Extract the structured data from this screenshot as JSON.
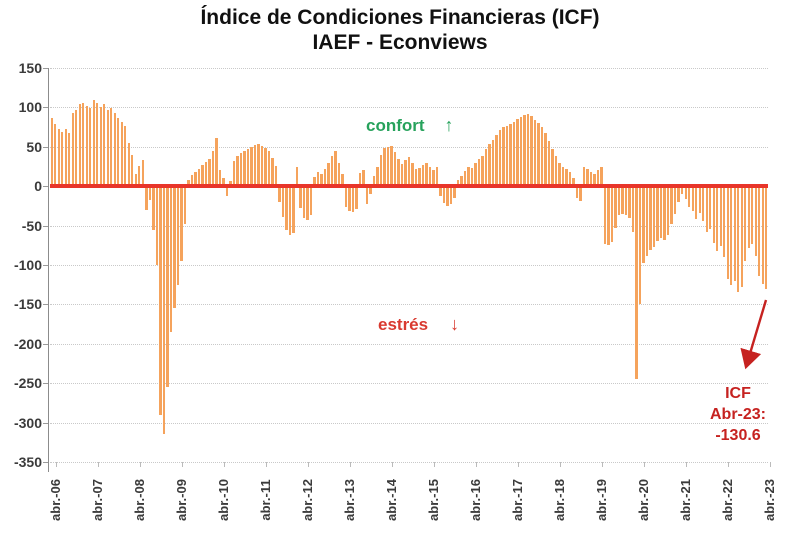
{
  "title": {
    "line1": "Índice de Condiciones Financieras (ICF)",
    "line2": "IAEF - Econviews"
  },
  "annotations": {
    "confort": {
      "label": "confort",
      "arrow": "↑",
      "color": "#27a25c"
    },
    "estres": {
      "label": "estrés",
      "arrow": "↓",
      "color": "#d93a30"
    },
    "callout": {
      "line1": "ICF",
      "line2": "Abr-23:",
      "line3": "-130.6",
      "color": "#c62220"
    }
  },
  "chart_data": {
    "type": "bar",
    "title": "Índice de Condiciones Financieras (ICF)",
    "subtitle": "IAEF - Econviews",
    "frequency": "monthly",
    "x_start": "abr.-06",
    "x_end": "abr.-23",
    "x_tick_labels": [
      "abr.-06",
      "abr.-07",
      "abr.-08",
      "abr.-09",
      "abr.-10",
      "abr.-11",
      "abr.-12",
      "abr.-13",
      "abr.-14",
      "abr.-15",
      "abr.-16",
      "abr.-17",
      "abr.-18",
      "abr.-19",
      "abr.-20",
      "abr.-21",
      "abr.-22",
      "abr.-23"
    ],
    "y_ticks": [
      150,
      100,
      50,
      0,
      -50,
      -100,
      -150,
      -200,
      -250,
      -300,
      -350
    ],
    "ylim": [
      -350,
      150
    ],
    "grid": true,
    "legend": false,
    "bar_color": "#f5a35c",
    "zero_line_color": "#e8352a",
    "axis_color": "#8c8c8c",
    "last_point_label": "-130.6",
    "values": [
      86,
      79,
      73,
      69,
      73,
      67,
      93,
      97,
      104,
      106,
      102,
      99,
      109,
      106,
      101,
      104,
      97,
      99,
      93,
      86,
      82,
      77,
      55,
      40,
      16,
      26,
      33,
      -30,
      -18,
      -55,
      -100,
      -290,
      -315,
      -255,
      -185,
      -155,
      -125,
      -95,
      -48,
      8,
      14,
      18,
      22,
      27,
      31,
      35,
      45,
      61,
      20,
      11,
      -12,
      7,
      32,
      38,
      42,
      45,
      47,
      50,
      52,
      54,
      51,
      49,
      45,
      36,
      26,
      -20,
      -39,
      -55,
      -62,
      -60,
      24,
      -28,
      -41,
      -43,
      -37,
      12,
      18,
      15,
      22,
      30,
      38,
      45,
      30,
      15,
      -27,
      -31,
      -33,
      -29,
      17,
      21,
      -23,
      -10,
      13,
      25,
      40,
      48,
      50,
      51,
      43,
      35,
      28,
      33,
      37,
      30,
      22,
      23,
      27,
      29,
      25,
      21,
      24,
      -12,
      -21,
      -25,
      -23,
      -15,
      8,
      13,
      19,
      25,
      23,
      29,
      35,
      38,
      47,
      53,
      59,
      65,
      71,
      75,
      77,
      79,
      81,
      85,
      88,
      90,
      92,
      89,
      84,
      80,
      75,
      67,
      57,
      47,
      38,
      30,
      25,
      22,
      18,
      10,
      -15,
      -19,
      25,
      22,
      18,
      15,
      20,
      24,
      -73,
      -75,
      -71,
      -53,
      -36,
      -35,
      -37,
      -40,
      -58,
      -245,
      -150,
      -97,
      -89,
      -81,
      -77,
      -70,
      -66,
      -68,
      -62,
      -48,
      -35,
      -20,
      -10,
      -16,
      -26,
      -32,
      -42,
      -34,
      -44,
      -58,
      -54,
      -72,
      -82,
      -76,
      -90,
      -118,
      -126,
      -120,
      -134,
      -128,
      -95,
      -78,
      -74,
      -88,
      -114,
      -124,
      -130.6
    ]
  }
}
